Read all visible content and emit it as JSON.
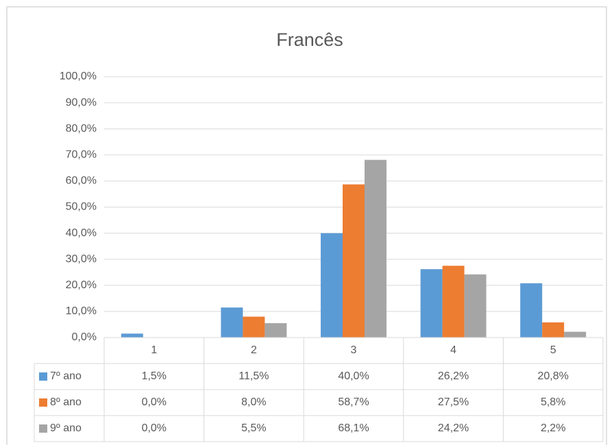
{
  "chart_data": {
    "type": "bar",
    "title": "Francês",
    "categories": [
      "1",
      "2",
      "3",
      "4",
      "5"
    ],
    "series": [
      {
        "name": "7º ano",
        "color": "#5b9bd5",
        "values": [
          1.5,
          11.5,
          40.0,
          26.2,
          20.8
        ],
        "value_labels": [
          "1,5%",
          "11,5%",
          "40,0%",
          "26,2%",
          "20,8%"
        ]
      },
      {
        "name": "8º ano",
        "color": "#ed7d31",
        "values": [
          0.0,
          8.0,
          58.7,
          27.5,
          5.8
        ],
        "value_labels": [
          "0,0%",
          "8,0%",
          "58,7%",
          "27,5%",
          "5,8%"
        ]
      },
      {
        "name": "9º ano",
        "color": "#a5a5a5",
        "values": [
          0.0,
          5.5,
          68.1,
          24.2,
          2.2
        ],
        "value_labels": [
          "0,0%",
          "5,5%",
          "68,1%",
          "24,2%",
          "2,2%"
        ]
      }
    ],
    "ylim": [
      0,
      100
    ],
    "yticks": [
      {
        "value": 0,
        "label": "0,0%"
      },
      {
        "value": 10,
        "label": "10,0%"
      },
      {
        "value": 20,
        "label": "20,0%"
      },
      {
        "value": 30,
        "label": "30,0%"
      },
      {
        "value": 40,
        "label": "40,0%"
      },
      {
        "value": 50,
        "label": "50,0%"
      },
      {
        "value": 60,
        "label": "60,0%"
      },
      {
        "value": 70,
        "label": "70,0%"
      },
      {
        "value": 80,
        "label": "80,0%"
      },
      {
        "value": 90,
        "label": "90,0%"
      },
      {
        "value": 100,
        "label": "100,0%"
      }
    ],
    "grid": true
  }
}
